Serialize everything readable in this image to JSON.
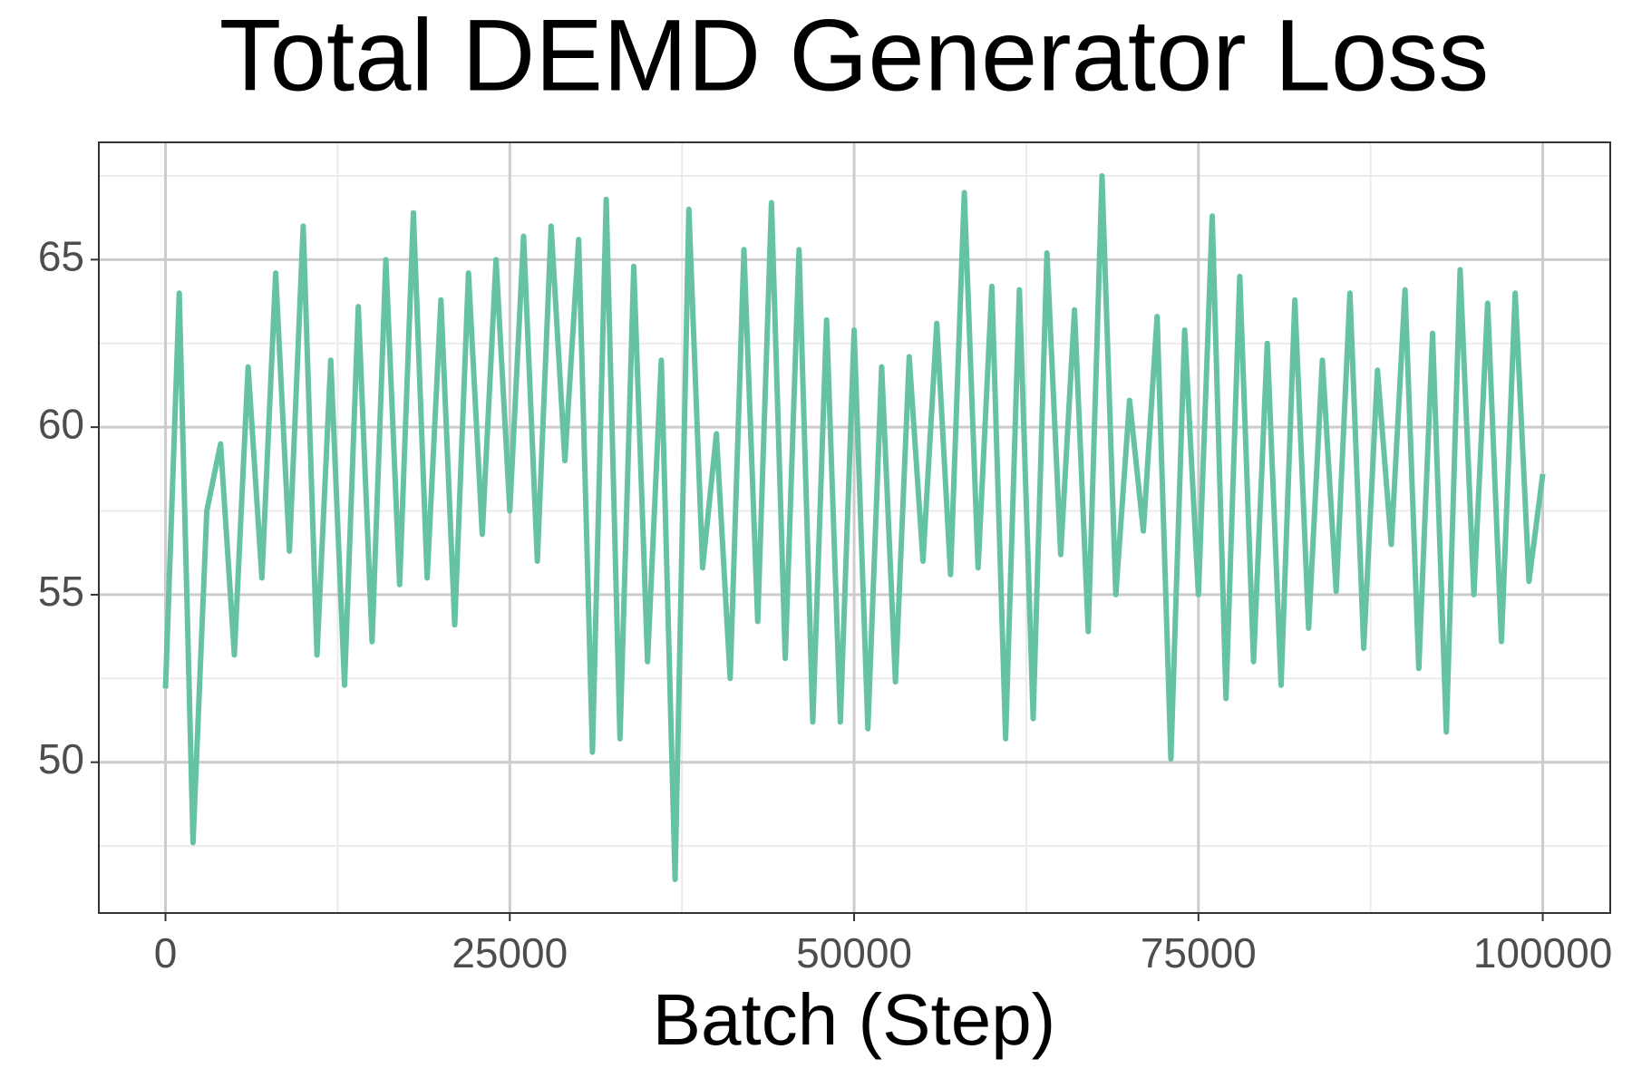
{
  "chart_data": {
    "type": "line",
    "title": "Total DEMD Generator Loss",
    "x_label": "Batch (Step)",
    "x": [
      0,
      1000,
      2000,
      3000,
      4000,
      5000,
      6000,
      7000,
      8000,
      9000,
      10000,
      11000,
      12000,
      13000,
      14000,
      15000,
      16000,
      17000,
      18000,
      19000,
      20000,
      21000,
      22000,
      23000,
      24000,
      25000,
      26000,
      27000,
      28000,
      29000,
      30000,
      31000,
      32000,
      33000,
      34000,
      35000,
      36000,
      37000,
      38000,
      39000,
      40000,
      41000,
      42000,
      43000,
      44000,
      45000,
      46000,
      47000,
      48000,
      49000,
      50000,
      51000,
      52000,
      53000,
      54000,
      55000,
      56000,
      57000,
      58000,
      59000,
      60000,
      61000,
      62000,
      63000,
      64000,
      65000,
      66000,
      67000,
      68000,
      69000,
      70000,
      71000,
      72000,
      73000,
      74000,
      75000,
      76000,
      77000,
      78000,
      79000,
      80000,
      81000,
      82000,
      83000,
      84000,
      85000,
      86000,
      87000,
      88000,
      89000,
      90000,
      91000,
      92000,
      93000,
      94000,
      95000,
      96000,
      97000,
      98000,
      99000,
      100000
    ],
    "series": [
      {
        "name": "Total DEMD Generator Loss",
        "color": "#66c2a5",
        "values": [
          52.2,
          64.0,
          47.6,
          57.5,
          59.5,
          53.2,
          61.8,
          55.5,
          64.6,
          56.3,
          66.0,
          53.2,
          62.0,
          52.3,
          63.6,
          53.6,
          65.0,
          55.3,
          66.4,
          55.5,
          63.8,
          54.1,
          64.6,
          56.8,
          65.0,
          57.5,
          65.7,
          56.0,
          66.0,
          59.0,
          65.6,
          50.3,
          66.8,
          50.7,
          64.8,
          53.0,
          62.0,
          46.5,
          66.5,
          55.8,
          59.8,
          52.5,
          65.3,
          54.2,
          66.7,
          53.1,
          65.3,
          51.2,
          63.2,
          51.2,
          62.9,
          51.0,
          61.8,
          52.4,
          62.1,
          56.0,
          63.1,
          55.6,
          67.0,
          55.8,
          64.2,
          50.7,
          64.1,
          51.3,
          65.2,
          56.2,
          63.5,
          53.9,
          67.5,
          55.0,
          60.8,
          56.9,
          63.3,
          50.1,
          62.9,
          55.0,
          66.3,
          51.9,
          64.5,
          53.0,
          62.5,
          52.3,
          63.8,
          54.0,
          62.0,
          55.1,
          64.0,
          53.4,
          61.7,
          56.5,
          64.1,
          52.8,
          62.8,
          50.9,
          64.7,
          55.0,
          63.7,
          53.6,
          64.0,
          55.4,
          58.6
        ]
      }
    ],
    "xlim": [
      -4840,
      104900
    ],
    "ylim": [
      45.5,
      68.5
    ],
    "xticks": [
      0,
      25000,
      50000,
      75000,
      100000
    ],
    "yticks": [
      50,
      55,
      60,
      65
    ],
    "x_minor_ticks": [
      12500,
      37500,
      62500,
      87500
    ],
    "y_minor_ticks": [
      47.5,
      52.5,
      57.5,
      62.5,
      67.5
    ],
    "grid": true
  }
}
